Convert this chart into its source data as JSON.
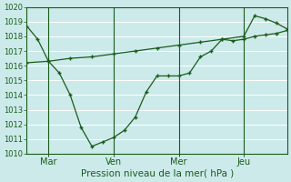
{
  "xlabel": "Pression niveau de la mer( hPa )",
  "bg_color": "#cceaea",
  "grid_color": "#ffffff",
  "line_color": "#1a5c1a",
  "ylim": [
    1010,
    1020
  ],
  "yticks": [
    1010,
    1011,
    1012,
    1013,
    1014,
    1015,
    1016,
    1017,
    1018,
    1019,
    1020
  ],
  "xtick_labels": [
    "Mar",
    "Ven",
    "Mer",
    "Jeu"
  ],
  "xtick_positions": [
    24,
    96,
    168,
    240
  ],
  "xlim": [
    0,
    288
  ],
  "vlines_x": [
    24,
    96,
    168,
    240
  ],
  "line1_x": [
    0,
    12,
    24,
    36,
    48,
    60,
    72,
    84,
    96,
    108,
    120,
    132,
    144,
    156,
    168,
    180,
    192,
    204,
    216,
    228,
    240,
    252,
    264,
    276,
    288
  ],
  "line1_y": [
    1018.7,
    1017.8,
    1016.3,
    1015.5,
    1014.0,
    1011.8,
    1010.5,
    1010.8,
    1011.1,
    1011.6,
    1012.5,
    1014.2,
    1015.3,
    1015.3,
    1015.3,
    1015.5,
    1016.6,
    1017.0,
    1017.8,
    1017.7,
    1017.8,
    1018.0,
    1018.1,
    1018.2,
    1018.4
  ],
  "line2_x": [
    0,
    24,
    48,
    72,
    96,
    120,
    144,
    168,
    192,
    216,
    240,
    252,
    264,
    276,
    288
  ],
  "line2_y": [
    1016.2,
    1016.3,
    1016.5,
    1016.6,
    1016.8,
    1017.0,
    1017.2,
    1017.4,
    1017.6,
    1017.8,
    1018.0,
    1019.4,
    1019.2,
    1018.9,
    1018.5
  ]
}
